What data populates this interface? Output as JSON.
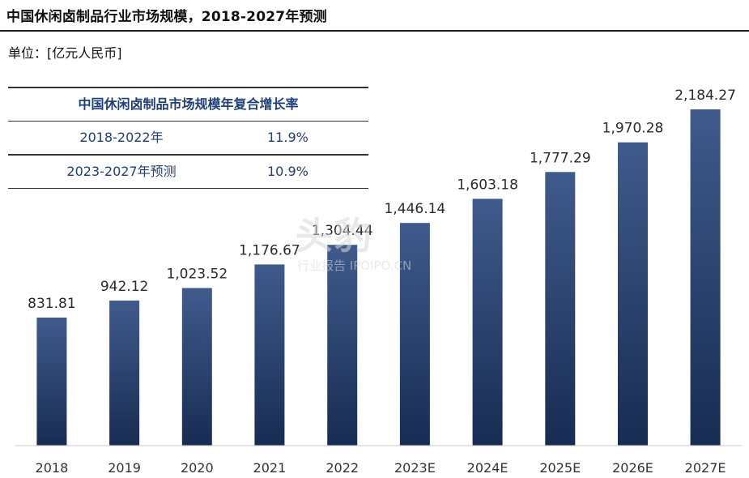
{
  "title": "中国休闲卤制品行业市场规模，2018-2027年预测",
  "unit": "单位：[亿元人民币]",
  "cagr_table": {
    "header": "中国休闲卤制品市场规模年复合增长率",
    "rows": [
      {
        "period": "2018-2022年",
        "value": "11.9%"
      },
      {
        "period": "2023-2027年预测",
        "value": "10.9%"
      }
    ]
  },
  "watermark": {
    "main": "头豹",
    "sub": "行业报告 IPOIPO.CN"
  },
  "colors": {
    "bar_top": "#3f5b8c",
    "bar_bottom": "#172c52",
    "text_blue": "#1f3f75"
  },
  "chart_data": {
    "type": "bar",
    "categories": [
      "2018",
      "2019",
      "2020",
      "2021",
      "2022",
      "2023E",
      "2024E",
      "2025E",
      "2026E",
      "2027E"
    ],
    "values": [
      831.81,
      942.12,
      1023.52,
      1176.67,
      1304.44,
      1446.14,
      1603.18,
      1777.29,
      1970.28,
      2184.27
    ],
    "data_labels": [
      "831.81",
      "942.12",
      "1,023.52",
      "1,176.67",
      "1,304.44",
      "1,446.14",
      "1,603.18",
      "1,777.29",
      "1,970.28",
      "2,184.27"
    ],
    "title": "中国休闲卤制品行业市场规模，2018-2027年预测",
    "xlabel": "",
    "ylabel": "",
    "grid": false,
    "legend": "none"
  }
}
